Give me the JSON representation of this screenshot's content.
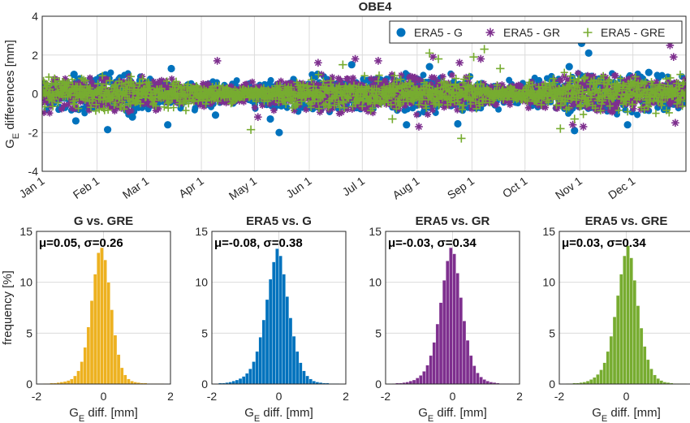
{
  "top_chart": {
    "title": "OBE4",
    "ylabel_main": "G",
    "ylabel_sub": "E",
    "ylabel_rest": " differences [mm]",
    "legend_location": "top-right",
    "chart_data": {
      "type": "scatter",
      "title": "OBE4",
      "ylabel": "G_E differences [mm]",
      "ylim": [
        -4,
        4
      ],
      "yticks": [
        -4,
        -2,
        0,
        2,
        4
      ],
      "xlim": [
        "2019-01-01",
        "2019-12-31"
      ],
      "x_tick_labels": [
        "Jan 1",
        "Feb 1",
        "Mar 1",
        "Apr 1",
        "May 1",
        "Jun 1",
        "Jul 1",
        "Aug 1",
        "Sep 1",
        "Oct 1",
        "Nov 1",
        "Dec 1"
      ],
      "x_tick_days": [
        0,
        31,
        59,
        90,
        120,
        151,
        181,
        212,
        243,
        273,
        304,
        334
      ],
      "grid": true,
      "series": [
        {
          "name": "ERA5 - G",
          "marker": "filled-circle",
          "color": "#0072BD",
          "outliers": [
            {
              "x": "2019-01-19",
              "y": 1.0
            },
            {
              "x": "2019-01-20",
              "y": -1.4
            },
            {
              "x": "2019-02-07",
              "y": -1.85
            },
            {
              "x": "2019-02-21",
              "y": -1.2
            },
            {
              "x": "2019-03-13",
              "y": -1.6
            },
            {
              "x": "2019-03-15",
              "y": 1.3
            },
            {
              "x": "2019-04-09",
              "y": -1.1
            },
            {
              "x": "2019-05-10",
              "y": -1.3
            },
            {
              "x": "2019-05-15",
              "y": -2.0
            },
            {
              "x": "2019-06-25",
              "y": 1.5
            },
            {
              "x": "2019-07-26",
              "y": -1.6
            },
            {
              "x": "2019-08-08",
              "y": 1.4
            },
            {
              "x": "2019-08-24",
              "y": -1.55
            },
            {
              "x": "2019-10-26",
              "y": 1.4
            },
            {
              "x": "2019-10-29",
              "y": -1.9
            },
            {
              "x": "2019-11-02",
              "y": 2.6
            },
            {
              "x": "2019-11-06",
              "y": 2.1
            },
            {
              "x": "2019-11-28",
              "y": -1.6
            },
            {
              "x": "2019-12-10",
              "y": 1.1
            }
          ]
        },
        {
          "name": "ERA5 - GR",
          "marker": "asterisk",
          "color": "#7E2F8E",
          "outliers": [
            {
              "x": "2019-04-10",
              "y": 1.7
            },
            {
              "x": "2019-05-03",
              "y": -1.2
            },
            {
              "x": "2019-06-06",
              "y": 1.6
            },
            {
              "x": "2019-06-27",
              "y": 1.8
            },
            {
              "x": "2019-07-10",
              "y": 1.7
            },
            {
              "x": "2019-08-02",
              "y": -1.7
            },
            {
              "x": "2019-08-10",
              "y": 1.9
            },
            {
              "x": "2019-08-25",
              "y": 1.6
            },
            {
              "x": "2019-09-06",
              "y": 1.8
            },
            {
              "x": "2019-10-28",
              "y": -1.6
            },
            {
              "x": "2019-11-03",
              "y": -1.7
            },
            {
              "x": "2019-12-22",
              "y": 2.5
            },
            {
              "x": "2019-12-24",
              "y": 1.9
            },
            {
              "x": "2019-12-25",
              "y": -1.5
            }
          ]
        },
        {
          "name": "ERA5 - GRE",
          "marker": "plus",
          "color": "#77AC30",
          "outliers": [
            {
              "x": "2019-04-29",
              "y": -1.85
            },
            {
              "x": "2019-06-20",
              "y": 1.5
            },
            {
              "x": "2019-07-18",
              "y": -1.3
            },
            {
              "x": "2019-08-08",
              "y": 2.1
            },
            {
              "x": "2019-08-13",
              "y": 1.8
            },
            {
              "x": "2019-08-26",
              "y": -2.3
            },
            {
              "x": "2019-09-02",
              "y": 1.9
            },
            {
              "x": "2019-09-08",
              "y": 2.3
            },
            {
              "x": "2019-09-17",
              "y": 1.3
            },
            {
              "x": "2019-10-21",
              "y": -1.8
            },
            {
              "x": "2019-10-29",
              "y": -1.3
            }
          ]
        }
      ]
    }
  },
  "histograms": [
    {
      "title": "G vs. GRE",
      "mu": "0.05",
      "sigma": "0.26",
      "color": "#EDB120",
      "chart_data": {
        "type": "bar",
        "title": "G vs. GRE",
        "xlabel": "G_E diff. [mm]",
        "ylabel": "frequency [%]",
        "xlim": [
          -2,
          2
        ],
        "ylim": [
          0,
          15
        ],
        "bin_width": 0.1,
        "bin_start": -1.8,
        "values": [
          0.05,
          0.05,
          0.1,
          0.1,
          0.15,
          0.2,
          0.25,
          0.35,
          0.5,
          0.8,
          1.3,
          2.2,
          3.6,
          5.6,
          8.2,
          10.8,
          12.9,
          13.4,
          12.2,
          10.0,
          7.3,
          4.8,
          2.9,
          1.6,
          0.9,
          0.5,
          0.3,
          0.2,
          0.15,
          0.1,
          0.1,
          0.05,
          0.05,
          0.05,
          0.05,
          0.05
        ]
      }
    },
    {
      "title": "ERA5 vs. G",
      "mu": "-0.08",
      "sigma": "0.38",
      "color": "#0072BD",
      "chart_data": {
        "type": "bar",
        "title": "ERA5 vs. G",
        "xlabel": "G_E diff. [mm]",
        "ylabel": "frequency [%]",
        "xlim": [
          -2,
          2
        ],
        "ylim": [
          0,
          15
        ],
        "bin_width": 0.1,
        "bin_start": -1.8,
        "values": [
          0.1,
          0.1,
          0.15,
          0.2,
          0.3,
          0.4,
          0.55,
          0.75,
          1.05,
          1.5,
          2.2,
          3.2,
          4.6,
          6.3,
          8.3,
          10.3,
          12.0,
          13.3,
          12.6,
          10.8,
          8.6,
          6.5,
          4.7,
          3.2,
          2.1,
          1.3,
          0.8,
          0.5,
          0.3,
          0.2,
          0.15,
          0.1,
          0.1,
          0.05,
          0.05,
          0.05
        ]
      }
    },
    {
      "title": "ERA5 vs. GR",
      "mu": "-0.03",
      "sigma": "0.34",
      "color": "#7E2F8E",
      "chart_data": {
        "type": "bar",
        "title": "ERA5 vs. GR",
        "xlabel": "G_E diff. [mm]",
        "ylabel": "frequency [%]",
        "xlim": [
          -2,
          2
        ],
        "ylim": [
          0,
          15
        ],
        "bin_width": 0.1,
        "bin_start": -1.8,
        "values": [
          0.05,
          0.1,
          0.1,
          0.15,
          0.2,
          0.3,
          0.4,
          0.6,
          0.85,
          1.25,
          1.85,
          2.8,
          4.1,
          5.9,
          8.0,
          10.2,
          12.1,
          13.4,
          12.8,
          10.9,
          8.5,
          6.2,
          4.3,
          2.8,
          1.8,
          1.1,
          0.7,
          0.45,
          0.3,
          0.2,
          0.15,
          0.1,
          0.05,
          0.05,
          0.05,
          0.05
        ]
      }
    },
    {
      "title": "ERA5 vs. GRE",
      "mu": "0.03",
      "sigma": "0.34",
      "color": "#77AC30",
      "chart_data": {
        "type": "bar",
        "title": "ERA5 vs. GRE",
        "xlabel": "G_E diff. [mm]",
        "ylabel": "frequency [%]",
        "xlim": [
          -2,
          2
        ],
        "ylim": [
          0,
          15
        ],
        "bin_width": 0.1,
        "bin_start": -1.8,
        "values": [
          0.05,
          0.05,
          0.1,
          0.1,
          0.15,
          0.2,
          0.3,
          0.45,
          0.65,
          0.95,
          1.4,
          2.1,
          3.2,
          4.7,
          6.6,
          8.7,
          10.8,
          12.6,
          13.6,
          12.4,
          10.2,
          7.7,
          5.5,
          3.7,
          2.4,
          1.5,
          0.9,
          0.55,
          0.35,
          0.2,
          0.15,
          0.1,
          0.05,
          0.05,
          0.05,
          0.05
        ]
      }
    }
  ],
  "hist_common": {
    "ylabel": "frequency [%]",
    "xlabel_main": "G",
    "xlabel_sub": "E",
    "xlabel_rest": " diff. [mm]",
    "mu_label": "μ=",
    "sigma_label": ", σ=",
    "yticks": [
      0,
      5,
      10,
      15
    ],
    "xticks": [
      -2,
      0,
      2
    ]
  }
}
